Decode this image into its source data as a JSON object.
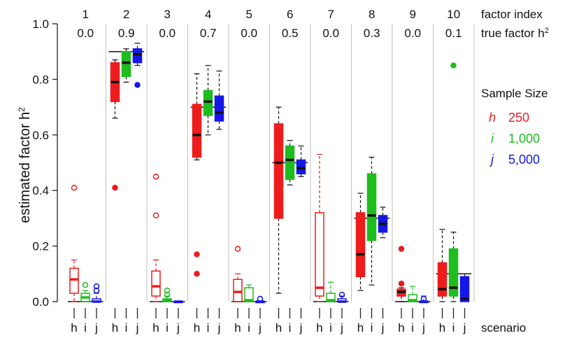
{
  "chart_data": {
    "type": "boxplot",
    "ylabel": "estimated factor h²",
    "ylim": [
      0.0,
      1.0
    ],
    "yticks": [
      "0.0",
      "0.2",
      "0.4",
      "0.6",
      "0.8",
      "1.0"
    ],
    "top_row_label": "factor index",
    "second_row_label": "true factor h²",
    "xlabel": "scenario",
    "factors": [
      {
        "index": "1",
        "true_h2": "0.0",
        "true_value": 0.0
      },
      {
        "index": "2",
        "true_h2": "0.9",
        "true_value": 0.9
      },
      {
        "index": "3",
        "true_h2": "0.0",
        "true_value": 0.0
      },
      {
        "index": "4",
        "true_h2": "0.7",
        "true_value": 0.7
      },
      {
        "index": "5",
        "true_h2": "0.0",
        "true_value": 0.0
      },
      {
        "index": "6",
        "true_h2": "0.5",
        "true_value": 0.5
      },
      {
        "index": "7",
        "true_h2": "0.0",
        "true_value": 0.0
      },
      {
        "index": "8",
        "true_h2": "0.3",
        "true_value": 0.3
      },
      {
        "index": "9",
        "true_h2": "0.0",
        "true_value": 0.0
      },
      {
        "index": "10",
        "true_h2": "0.1",
        "true_value": 0.1
      }
    ],
    "scenario_labels": [
      "h",
      "i",
      "j"
    ],
    "legend": {
      "title": "Sample Size",
      "items": [
        {
          "scenario": "h",
          "label": "250",
          "color": "#ee1c1c"
        },
        {
          "scenario": "i",
          "label": "1,000",
          "color": "#1ebd1e"
        },
        {
          "scenario": "j",
          "label": "5,000",
          "color": "#1616e6"
        }
      ]
    },
    "colors": {
      "h": "#ee1c1c",
      "i": "#1ebd1e",
      "j": "#1616e6",
      "zero_label": "#8a8a8a",
      "separator": "#bfbfbf"
    },
    "boxes": [
      [
        {
          "q1": 0.03,
          "median": 0.08,
          "q3": 0.12,
          "wlo": 0.0,
          "whi": 0.15,
          "outliers": [
            0.41
          ],
          "filled": false
        },
        {
          "q1": 0.0,
          "median": 0.015,
          "q3": 0.03,
          "wlo": 0.0,
          "whi": 0.04,
          "outliers": [
            0.06
          ],
          "filled": false
        },
        {
          "q1": 0.0,
          "median": 0.0,
          "q3": 0.01,
          "wlo": 0.0,
          "whi": 0.03,
          "outliers": [
            0.04,
            0.055
          ],
          "filled": false
        }
      ],
      [
        {
          "q1": 0.72,
          "median": 0.79,
          "q3": 0.86,
          "wlo": 0.66,
          "whi": 0.87,
          "outliers": [
            0.41
          ],
          "filled": true
        },
        {
          "q1": 0.81,
          "median": 0.86,
          "q3": 0.9,
          "wlo": 0.79,
          "whi": 0.91,
          "outliers": [],
          "filled": true
        },
        {
          "q1": 0.86,
          "median": 0.89,
          "q3": 0.91,
          "wlo": 0.85,
          "whi": 0.93,
          "outliers": [
            0.78
          ],
          "filled": true
        }
      ],
      [
        {
          "q1": 0.02,
          "median": 0.055,
          "q3": 0.11,
          "wlo": 0.0,
          "whi": 0.15,
          "outliers": [
            0.31,
            0.45
          ],
          "filled": false
        },
        {
          "q1": 0.0,
          "median": 0.005,
          "q3": 0.01,
          "wlo": 0.0,
          "whi": 0.02,
          "outliers": [
            0.025,
            0.04
          ],
          "filled": false
        },
        {
          "q1": 0.0,
          "median": 0.0,
          "q3": 0.0,
          "wlo": 0.0,
          "whi": 0.0,
          "outliers": [],
          "filled": false
        }
      ],
      [
        {
          "q1": 0.52,
          "median": 0.6,
          "q3": 0.71,
          "wlo": 0.51,
          "whi": 0.82,
          "outliers": [
            0.17,
            0.1
          ],
          "filled": true
        },
        {
          "q1": 0.67,
          "median": 0.72,
          "q3": 0.76,
          "wlo": 0.6,
          "whi": 0.85,
          "outliers": [],
          "filled": true
        },
        {
          "q1": 0.65,
          "median": 0.68,
          "q3": 0.74,
          "wlo": 0.62,
          "whi": 0.83,
          "outliers": [],
          "filled": true
        }
      ],
      [
        {
          "q1": 0.0,
          "median": 0.035,
          "q3": 0.08,
          "wlo": 0.0,
          "whi": 0.1,
          "outliers": [
            0.19
          ],
          "filled": false
        },
        {
          "q1": 0.0,
          "median": 0.005,
          "q3": 0.05,
          "wlo": 0.0,
          "whi": 0.06,
          "outliers": [],
          "filled": false
        },
        {
          "q1": 0.0,
          "median": 0.0,
          "q3": 0.0,
          "wlo": 0.0,
          "whi": 0.0,
          "outliers": [
            0.01
          ],
          "filled": false
        }
      ],
      [
        {
          "q1": 0.3,
          "median": 0.5,
          "q3": 0.64,
          "wlo": 0.03,
          "whi": 0.7,
          "outliers": [],
          "filled": true
        },
        {
          "q1": 0.44,
          "median": 0.51,
          "q3": 0.56,
          "wlo": 0.42,
          "whi": 0.58,
          "outliers": [],
          "filled": true
        },
        {
          "q1": 0.46,
          "median": 0.48,
          "q3": 0.51,
          "wlo": 0.45,
          "whi": 0.56,
          "outliers": [],
          "filled": true
        }
      ],
      [
        {
          "q1": 0.02,
          "median": 0.05,
          "q3": 0.32,
          "wlo": 0.0,
          "whi": 0.53,
          "outliers": [],
          "filled": false
        },
        {
          "q1": 0.0,
          "median": 0.005,
          "q3": 0.03,
          "wlo": 0.0,
          "whi": 0.07,
          "outliers": [],
          "filled": false
        },
        {
          "q1": 0.0,
          "median": 0.0,
          "q3": 0.01,
          "wlo": 0.0,
          "whi": 0.02,
          "outliers": [
            0.025
          ],
          "filled": false
        }
      ],
      [
        {
          "q1": 0.09,
          "median": 0.17,
          "q3": 0.32,
          "wlo": 0.04,
          "whi": 0.39,
          "outliers": [],
          "filled": true
        },
        {
          "q1": 0.22,
          "median": 0.31,
          "q3": 0.46,
          "wlo": 0.06,
          "whi": 0.52,
          "outliers": [],
          "filled": true
        },
        {
          "q1": 0.25,
          "median": 0.28,
          "q3": 0.31,
          "wlo": 0.23,
          "whi": 0.34,
          "outliers": [],
          "filled": true
        }
      ],
      [
        {
          "q1": 0.02,
          "median": 0.035,
          "q3": 0.045,
          "wlo": 0.0,
          "whi": 0.05,
          "outliers": [
            0.19,
            0.065
          ],
          "filled": true
        },
        {
          "q1": 0.0,
          "median": 0.005,
          "q3": 0.025,
          "wlo": 0.0,
          "whi": 0.055,
          "outliers": [],
          "filled": false
        },
        {
          "q1": 0.0,
          "median": 0.0,
          "q3": 0.0,
          "wlo": 0.0,
          "whi": 0.02,
          "outliers": [
            0.01
          ],
          "filled": false
        }
      ],
      [
        {
          "q1": 0.02,
          "median": 0.045,
          "q3": 0.14,
          "wlo": 0.0,
          "whi": 0.26,
          "outliers": [],
          "filled": true
        },
        {
          "q1": 0.02,
          "median": 0.05,
          "q3": 0.19,
          "wlo": 0.0,
          "whi": 0.25,
          "outliers": [
            0.85
          ],
          "filled": true
        },
        {
          "q1": 0.0,
          "median": 0.01,
          "q3": 0.09,
          "wlo": 0.0,
          "whi": 0.1,
          "outliers": [],
          "filled": true
        }
      ]
    ]
  }
}
